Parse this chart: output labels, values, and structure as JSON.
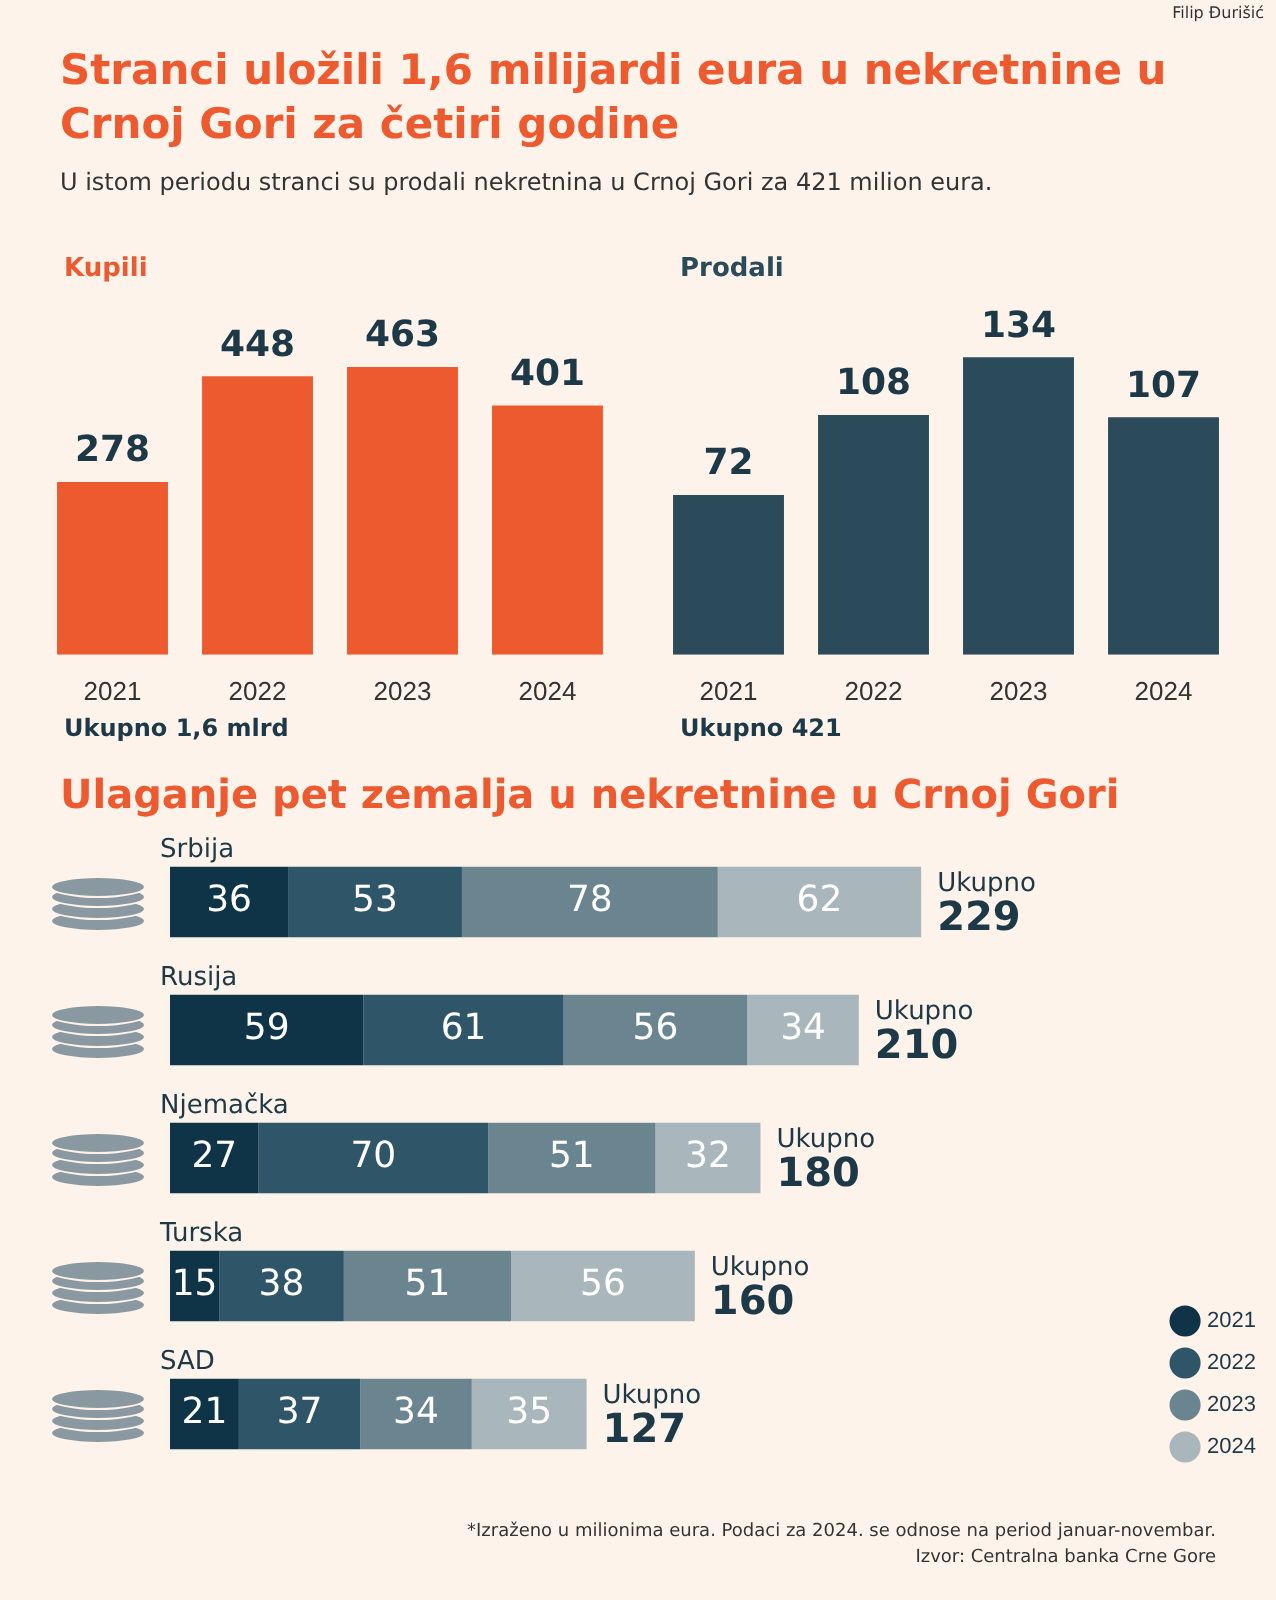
{
  "chart_data": [
    {
      "type": "other",
      "title": "Stranci uložili 1,6 milijardi eura u nekretnine u Crnoj Gori za četiri godine",
      "subtitle": "U istom periodu stranci su prodali nekretnina u Crnoj Gori za 421 milion eura.",
      "annotations": [
        "Filip Đurišić"
      ]
    },
    {
      "type": "bar",
      "title": "Kupili",
      "categories": [
        "2021",
        "2022",
        "2023",
        "2024"
      ],
      "values": [
        278,
        448,
        463,
        401
      ],
      "color": "#ee5a2f",
      "data_labels": true,
      "annotations": [
        "Ukupno 1,6 mlrd"
      ]
    },
    {
      "type": "bar",
      "title": "Prodali",
      "categories": [
        "2021",
        "2022",
        "2023",
        "2024"
      ],
      "values": [
        72,
        108,
        134,
        107
      ],
      "color": "#2b4a5a",
      "data_labels": true,
      "annotations": [
        "Ukupno 421"
      ]
    },
    {
      "type": "bar",
      "orientation": "horizontal",
      "stacked": true,
      "title": "Ulaganje pet zemalja u nekretnine u Crnoj Gori",
      "categories": [
        "Srbija",
        "Rusija",
        "Njemačka",
        "Turska",
        "SAD"
      ],
      "series": [
        {
          "name": "2021",
          "color": "#0f3447",
          "values": [
            36,
            59,
            27,
            15,
            21
          ]
        },
        {
          "name": "2022",
          "color": "#2f5668",
          "values": [
            53,
            61,
            70,
            38,
            37
          ]
        },
        {
          "name": "2023",
          "color": "#6b8590",
          "values": [
            78,
            56,
            51,
            51,
            34
          ]
        },
        {
          "name": "2024",
          "color": "#a9b6bc",
          "values": [
            62,
            34,
            32,
            56,
            35
          ]
        }
      ],
      "totals": [
        "Ukupno 229",
        "Ukupno 210",
        "Ukupno 180",
        "Ukupno 160",
        "Ukupno 127"
      ],
      "data_labels": true,
      "legend": "bottom right",
      "annotations": [
        "*Izraženo u milionima eura. Podaci za 2024. se odnose na period januar-novembar.",
        "Izvor: Centralna banka Crne Gore"
      ]
    }
  ]
}
